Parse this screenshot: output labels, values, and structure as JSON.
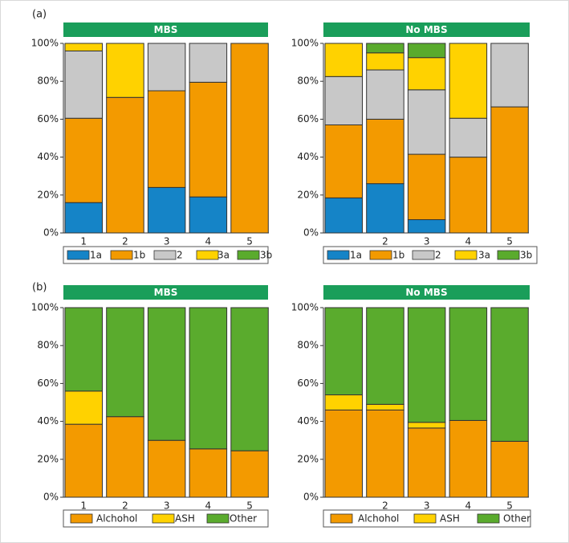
{
  "figure": {
    "panel_labels": [
      "(a)",
      "(b)"
    ],
    "header_color": "#1a9e5a",
    "header_text_color": "#ffffff",
    "frame_color": "#d9d9d9"
  },
  "chart_data": [
    {
      "type": "bar",
      "stacked": true,
      "panel": "(a)",
      "title": "MBS",
      "categories": [
        "1",
        "2",
        "3",
        "4",
        "5"
      ],
      "ylim": [
        0,
        100
      ],
      "yticks": [
        "0%",
        "20%",
        "40%",
        "60%",
        "80%",
        "100%"
      ],
      "legend": "bottom",
      "series": [
        {
          "name": "1a",
          "color": "#1584c7",
          "values": [
            16,
            0,
            24,
            19,
            0
          ]
        },
        {
          "name": "1b",
          "color": "#f39a00",
          "values": [
            44.5,
            71.5,
            51,
            60.5,
            100
          ]
        },
        {
          "name": "2",
          "color": "#c8c8c8",
          "values": [
            35.5,
            0,
            25,
            20.5,
            0
          ]
        },
        {
          "name": "3a",
          "color": "#ffd200",
          "values": [
            4,
            28.5,
            0,
            0,
            0
          ]
        },
        {
          "name": "3b",
          "color": "#5aab2d",
          "values": [
            0,
            0,
            0,
            0,
            0
          ]
        }
      ]
    },
    {
      "type": "bar",
      "stacked": true,
      "panel": "",
      "title": "No MBS",
      "categories": [
        "",
        "2",
        "3",
        "4",
        "5"
      ],
      "ylim": [
        0,
        100
      ],
      "yticks": [
        "0%",
        "20%",
        "40%",
        "60%",
        "80%",
        "100%"
      ],
      "legend": "bottom",
      "series": [
        {
          "name": "1a",
          "color": "#1584c7",
          "values": [
            18.5,
            26,
            7,
            0,
            0
          ]
        },
        {
          "name": "1b",
          "color": "#f39a00",
          "values": [
            38.5,
            34,
            34.5,
            40,
            66.5
          ]
        },
        {
          "name": "2",
          "color": "#c8c8c8",
          "values": [
            25.5,
            26,
            34,
            20.5,
            33.5
          ]
        },
        {
          "name": "3a",
          "color": "#ffd200",
          "values": [
            17.5,
            9,
            17,
            39.5,
            0
          ]
        },
        {
          "name": "3b",
          "color": "#5aab2d",
          "values": [
            0,
            5,
            7.5,
            0,
            0
          ]
        }
      ]
    },
    {
      "type": "bar",
      "stacked": true,
      "panel": "(b)",
      "title": "MBS",
      "categories": [
        "1",
        "2",
        "3",
        "4",
        "5"
      ],
      "ylim": [
        0,
        100
      ],
      "yticks": [
        "0%",
        "20%",
        "40%",
        "60%",
        "80%",
        "100%"
      ],
      "legend": "bottom",
      "series": [
        {
          "name": "Alchohol",
          "color": "#f39a00",
          "values": [
            38.5,
            42.5,
            30,
            25.5,
            24.5
          ]
        },
        {
          "name": "ASH",
          "color": "#ffd200",
          "values": [
            17.5,
            0,
            0,
            0,
            0
          ]
        },
        {
          "name": "Other",
          "color": "#5aab2d",
          "values": [
            44,
            57.5,
            70,
            74.5,
            75.5
          ]
        }
      ]
    },
    {
      "type": "bar",
      "stacked": true,
      "panel": "",
      "title": "No MBS",
      "categories": [
        "",
        "2",
        "3",
        "4",
        "5"
      ],
      "ylim": [
        0,
        100
      ],
      "yticks": [
        "0%",
        "20%",
        "40%",
        "60%",
        "80%",
        "100%"
      ],
      "legend": "bottom",
      "series": [
        {
          "name": "Alchohol",
          "color": "#f39a00",
          "values": [
            46,
            46,
            36.5,
            40.5,
            29.5
          ]
        },
        {
          "name": "ASH",
          "color": "#ffd200",
          "values": [
            8,
            3,
            3,
            0,
            0
          ]
        },
        {
          "name": "Other",
          "color": "#5aab2d",
          "values": [
            46,
            51,
            60.5,
            59.5,
            70.5
          ]
        }
      ]
    }
  ]
}
